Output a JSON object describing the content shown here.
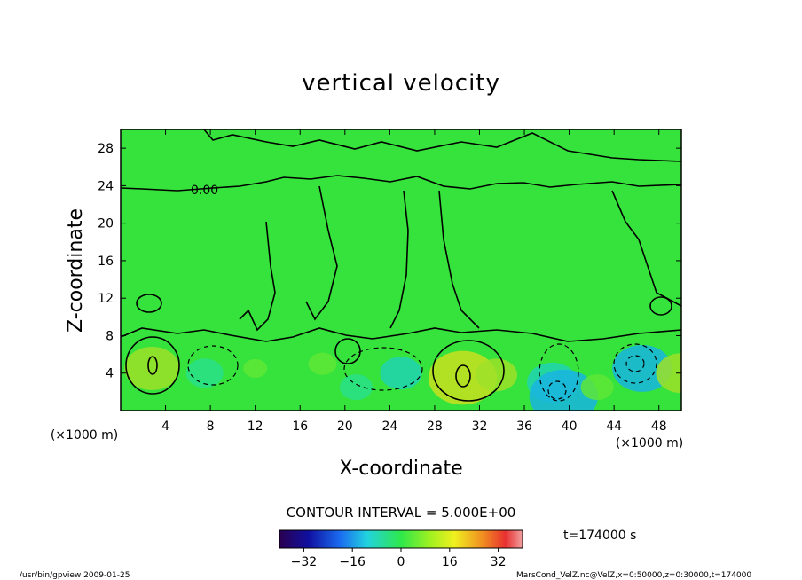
{
  "chart_data": {
    "type": "heatmap",
    "title": "vertical velocity",
    "xlabel": "X-coordinate",
    "ylabel": "Z-coordinate",
    "x_unit": "(×1000 m)",
    "y_unit": "(×1000 m)",
    "xlim": [
      0,
      50
    ],
    "ylim": [
      0,
      30
    ],
    "x_ticks": [
      4,
      8,
      12,
      16,
      20,
      24,
      28,
      32,
      36,
      40,
      44,
      48
    ],
    "y_ticks": [
      4,
      8,
      12,
      16,
      20,
      24,
      28
    ],
    "contour_interval_label": "CONTOUR INTERVAL = 5.000E+00",
    "contour_label": "0.00",
    "time_label": "t=174000 s",
    "colorbar": {
      "range": [
        -40,
        40
      ],
      "ticks": [
        -32,
        -16,
        0,
        16,
        32
      ]
    },
    "features": [
      {
        "x": 2.8,
        "z": 4.5,
        "value": 9
      },
      {
        "x": 7.5,
        "z": 4.0,
        "value": -5
      },
      {
        "x": 12.0,
        "z": 4.5,
        "value": 2
      },
      {
        "x": 18.0,
        "z": 5.0,
        "value": 3
      },
      {
        "x": 21.0,
        "z": 2.5,
        "value": -4
      },
      {
        "x": 25.0,
        "z": 4.0,
        "value": -6
      },
      {
        "x": 30.5,
        "z": 3.5,
        "value": 12
      },
      {
        "x": 33.5,
        "z": 3.8,
        "value": 6
      },
      {
        "x": 38.5,
        "z": 3.0,
        "value": -8
      },
      {
        "x": 39.5,
        "z": 1.5,
        "value": -12
      },
      {
        "x": 42.5,
        "z": 2.5,
        "value": 4
      },
      {
        "x": 46.5,
        "z": 4.5,
        "value": -10
      },
      {
        "x": 50.0,
        "z": 4.0,
        "value": 8
      }
    ]
  },
  "footer": {
    "left": "/usr/bin/gpview  2009-01-25",
    "right": "MarsCond_VelZ.nc@VelZ,x=0:50000,z=0:30000,t=174000"
  }
}
